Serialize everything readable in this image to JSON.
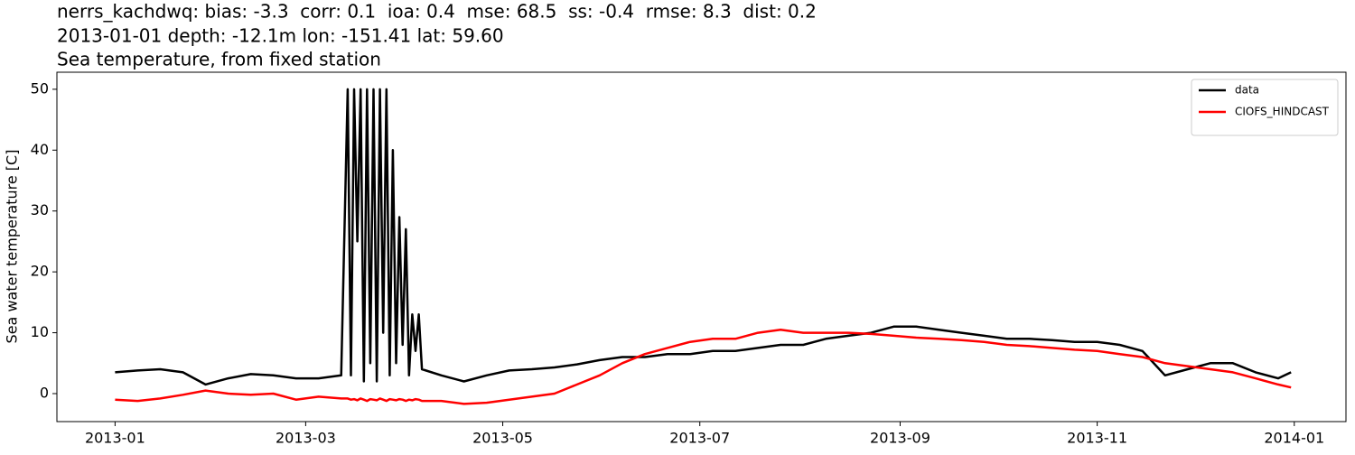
{
  "chart_data": {
    "type": "line",
    "title": "nerrs_kachdwq: bias: -3.3  corr: 0.1  ioa: 0.4  mse: 68.5  ss: -0.4  rmse: 8.3  dist: 0.2",
    "subtitle": "2013-01-01 depth: -12.1m lon: -151.41 lat: 59.60",
    "description": "Sea temperature, from fixed station",
    "y_label": "Sea water temperature [C]",
    "x": [
      "2013-01-01",
      "2013-01-08",
      "2013-01-15",
      "2013-01-22",
      "2013-01-29",
      "2013-02-05",
      "2013-02-12",
      "2013-02-19",
      "2013-02-26",
      "2013-03-05",
      "2013-03-12",
      "2013-03-14",
      "2013-03-15",
      "2013-03-16",
      "2013-03-17",
      "2013-03-18",
      "2013-03-19",
      "2013-03-20",
      "2013-03-21",
      "2013-03-22",
      "2013-03-23",
      "2013-03-24",
      "2013-03-25",
      "2013-03-26",
      "2013-03-27",
      "2013-03-28",
      "2013-03-29",
      "2013-03-30",
      "2013-03-31",
      "2013-04-01",
      "2013-04-02",
      "2013-04-03",
      "2013-04-04",
      "2013-04-05",
      "2013-04-06",
      "2013-04-12",
      "2013-04-19",
      "2013-04-26",
      "2013-05-03",
      "2013-05-10",
      "2013-05-17",
      "2013-05-24",
      "2013-05-31",
      "2013-06-07",
      "2013-06-14",
      "2013-06-21",
      "2013-06-28",
      "2013-07-05",
      "2013-07-12",
      "2013-07-19",
      "2013-07-26",
      "2013-08-02",
      "2013-08-09",
      "2013-08-16",
      "2013-08-23",
      "2013-08-30",
      "2013-09-06",
      "2013-09-13",
      "2013-09-20",
      "2013-09-27",
      "2013-10-04",
      "2013-10-11",
      "2013-10-18",
      "2013-10-25",
      "2013-11-01",
      "2013-11-08",
      "2013-11-15",
      "2013-11-22",
      "2013-11-29",
      "2013-12-06",
      "2013-12-13",
      "2013-12-20",
      "2013-12-27",
      "2013-12-31"
    ],
    "series": [
      {
        "name": "data",
        "color": "#000000",
        "values": [
          3.5,
          3.8,
          4,
          3.5,
          1.5,
          2.5,
          3.2,
          3,
          2.5,
          2.5,
          3,
          50,
          3,
          50,
          25,
          50,
          2,
          50,
          5,
          50,
          2,
          50,
          10,
          50,
          3,
          40,
          5,
          29,
          8,
          27,
          3,
          13,
          7,
          13,
          4,
          3,
          2,
          3,
          3.8,
          4,
          4.3,
          4.8,
          5.5,
          6,
          6,
          6.5,
          6.5,
          7,
          7,
          7.5,
          8,
          8,
          9,
          9.5,
          10,
          11,
          11,
          10.5,
          10,
          9.5,
          9,
          9,
          8.8,
          8.5,
          8.5,
          8,
          7,
          3,
          4,
          5,
          5,
          3.5,
          2.5,
          3.5
        ]
      },
      {
        "name": "CIOFS_HINDCAST",
        "color": "#ff0000",
        "values": [
          -1,
          -1.2,
          -0.8,
          -0.2,
          0.5,
          0,
          -0.2,
          0,
          -1,
          -0.5,
          -0.8,
          -0.8,
          -1,
          -0.9,
          -1.1,
          -0.8,
          -1,
          -1.2,
          -0.9,
          -1,
          -1.1,
          -0.8,
          -1,
          -1.2,
          -0.9,
          -1,
          -1.1,
          -0.9,
          -1,
          -1.2,
          -1,
          -1.1,
          -0.9,
          -1,
          -1.2,
          -1.2,
          -1.7,
          -1.5,
          -1,
          -0.5,
          0,
          1.5,
          3,
          5,
          6.5,
          7.5,
          8.5,
          9,
          9,
          10,
          10.5,
          10,
          10,
          10,
          9.8,
          9.5,
          9.2,
          9,
          8.8,
          8.5,
          8,
          7.8,
          7.5,
          7.2,
          7,
          6.5,
          6,
          5,
          4.5,
          4,
          3.5,
          2.5,
          1.5,
          1
        ]
      }
    ],
    "xlim": [
      "2012-12-14",
      "2014-01-17"
    ],
    "xticks": [
      {
        "value": "2013-01-01",
        "label": "2013-01"
      },
      {
        "value": "2013-03-01",
        "label": "2013-03"
      },
      {
        "value": "2013-05-01",
        "label": "2013-05"
      },
      {
        "value": "2013-07-01",
        "label": "2013-07"
      },
      {
        "value": "2013-09-01",
        "label": "2013-09"
      },
      {
        "value": "2013-11-01",
        "label": "2013-11"
      },
      {
        "value": "2014-01-01",
        "label": "2014-01"
      }
    ],
    "ylim": [
      -4.6,
      52.8
    ],
    "yticks": [
      0,
      10,
      20,
      30,
      40,
      50
    ],
    "grid": false,
    "legend": "upper right"
  }
}
